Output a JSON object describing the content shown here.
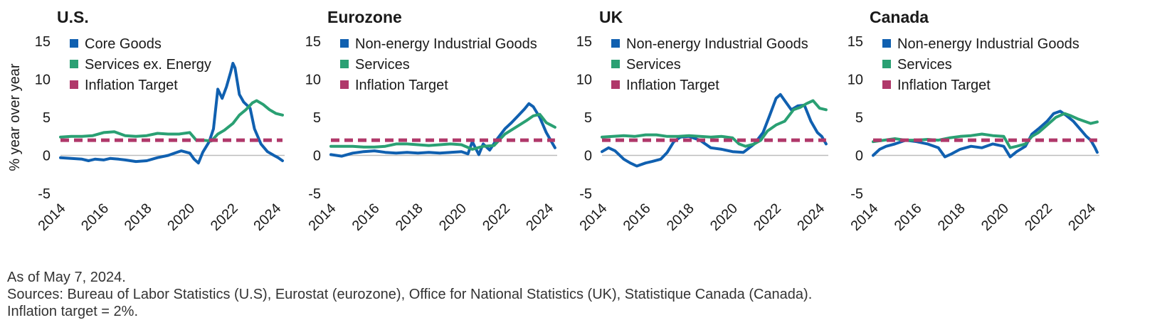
{
  "colors": {
    "goods": "#1060b0",
    "services": "#2aa073",
    "target": "#b0386a",
    "axis": "#bdbdbd",
    "text": "#1a1a1a"
  },
  "notes": {
    "as_of": "As of May 7, 2024.",
    "sources": "Sources: Bureau of Labor Statistics (U.S), Eurostat (eurozone), Office for National Statistics (UK), Statistique Canada (Canada).",
    "target_note": "Inflation target = 2%."
  },
  "chart_data": [
    {
      "type": "line",
      "title": "U.S.",
      "ylabel": "% year over year",
      "xlabel": "",
      "ylim": [
        -5,
        15
      ],
      "yticks": [
        -5,
        0,
        5,
        10,
        15
      ],
      "xlim": [
        2014,
        2024.4
      ],
      "xticks": [
        2014,
        2016,
        2018,
        2020,
        2022,
        2024
      ],
      "legend": "top-left",
      "grid": false,
      "series": [
        {
          "name": "Core Goods",
          "color_key": "goods",
          "x": [
            2014,
            2014.5,
            2015,
            2015.3,
            2015.6,
            2016,
            2016.3,
            2016.7,
            2017,
            2017.5,
            2018,
            2018.5,
            2019,
            2019.3,
            2019.6,
            2020,
            2020.2,
            2020.4,
            2020.6,
            2020.9,
            2021.1,
            2021.3,
            2021.5,
            2021.7,
            2021.9,
            2022.0,
            2022.1,
            2022.3,
            2022.5,
            2022.8,
            2023.0,
            2023.3,
            2023.6,
            2023.9,
            2024.1,
            2024.3
          ],
          "values": [
            -0.3,
            -0.4,
            -0.5,
            -0.7,
            -0.5,
            -0.6,
            -0.4,
            -0.5,
            -0.6,
            -0.8,
            -0.7,
            -0.3,
            0.0,
            0.3,
            0.6,
            0.3,
            -0.5,
            -1.0,
            0.4,
            1.8,
            3.5,
            8.7,
            7.5,
            9.0,
            11.0,
            12.1,
            11.5,
            8.0,
            7.0,
            6.2,
            3.5,
            1.5,
            0.5,
            0.0,
            -0.3,
            -0.7
          ]
        },
        {
          "name": "Services ex. Energy",
          "color_key": "services",
          "x": [
            2014,
            2014.5,
            2015,
            2015.5,
            2016,
            2016.5,
            2017,
            2017.5,
            2018,
            2018.5,
            2019,
            2019.5,
            2020,
            2020.3,
            2020.6,
            2021,
            2021.3,
            2021.6,
            2022,
            2022.3,
            2022.6,
            2022.9,
            2023.1,
            2023.4,
            2023.7,
            2024,
            2024.3
          ],
          "values": [
            2.4,
            2.5,
            2.5,
            2.6,
            3.0,
            3.1,
            2.6,
            2.5,
            2.6,
            2.9,
            2.8,
            2.8,
            3.0,
            2.0,
            2.0,
            1.9,
            2.8,
            3.3,
            4.2,
            5.3,
            6.0,
            6.9,
            7.2,
            6.7,
            6.0,
            5.5,
            5.3
          ]
        },
        {
          "name": "Inflation Target",
          "color_key": "target",
          "dashed": true,
          "x": [
            2014,
            2024.3
          ],
          "values": [
            2,
            2
          ]
        }
      ]
    },
    {
      "type": "line",
      "title": "Eurozone",
      "ylabel": "",
      "xlabel": "",
      "ylim": [
        -5,
        15
      ],
      "yticks": [
        -5,
        0,
        5,
        10,
        15
      ],
      "xlim": [
        2014,
        2024.4
      ],
      "xticks": [
        2014,
        2016,
        2018,
        2020,
        2022,
        2024
      ],
      "legend": "top-left",
      "grid": false,
      "series": [
        {
          "name": "Non-energy Industrial Goods",
          "color_key": "goods",
          "x": [
            2014,
            2014.5,
            2015,
            2015.5,
            2016,
            2016.5,
            2017,
            2017.5,
            2018,
            2018.5,
            2019,
            2019.5,
            2020,
            2020.3,
            2020.5,
            2020.8,
            2021,
            2021.3,
            2021.6,
            2022,
            2022.3,
            2022.6,
            2022.9,
            2023.1,
            2023.3,
            2023.6,
            2023.9,
            2024.1,
            2024.3
          ],
          "values": [
            0.1,
            -0.1,
            0.3,
            0.5,
            0.6,
            0.4,
            0.3,
            0.4,
            0.3,
            0.4,
            0.3,
            0.4,
            0.5,
            0.2,
            1.8,
            0.1,
            1.5,
            0.7,
            2.0,
            3.5,
            4.3,
            5.2,
            6.1,
            6.8,
            6.4,
            5.0,
            3.0,
            2.0,
            1.0
          ]
        },
        {
          "name": "Services",
          "color_key": "services",
          "x": [
            2014,
            2014.5,
            2015,
            2015.5,
            2016,
            2016.5,
            2017,
            2017.5,
            2018,
            2018.5,
            2019,
            2019.5,
            2020,
            2020.5,
            2021,
            2021.5,
            2022,
            2022.5,
            2023,
            2023.3,
            2023.6,
            2023.9,
            2024.1,
            2024.3
          ],
          "values": [
            1.2,
            1.2,
            1.2,
            1.1,
            1.1,
            1.2,
            1.5,
            1.5,
            1.4,
            1.3,
            1.4,
            1.5,
            1.4,
            0.8,
            1.2,
            1.3,
            2.8,
            3.7,
            4.6,
            5.2,
            5.4,
            4.3,
            4.0,
            3.7
          ]
        },
        {
          "name": "Inflation Target",
          "color_key": "target",
          "dashed": true,
          "x": [
            2014,
            2024.3
          ],
          "values": [
            2,
            2
          ]
        }
      ]
    },
    {
      "type": "line",
      "title": "UK",
      "ylabel": "",
      "xlabel": "",
      "ylim": [
        -5,
        15
      ],
      "yticks": [
        -5,
        0,
        5,
        10,
        15
      ],
      "xlim": [
        2014,
        2024.4
      ],
      "xticks": [
        2014,
        2016,
        2018,
        2020,
        2022,
        2024
      ],
      "legend": "top-left",
      "grid": false,
      "series": [
        {
          "name": "Non-energy Industrial Goods",
          "color_key": "goods",
          "x": [
            2014,
            2014.3,
            2014.6,
            2015,
            2015.3,
            2015.6,
            2016,
            2016.3,
            2016.7,
            2017,
            2017.3,
            2017.6,
            2018,
            2018.5,
            2019,
            2019.5,
            2020,
            2020.5,
            2021,
            2021.4,
            2021.7,
            2022,
            2022.2,
            2022.4,
            2022.7,
            2023,
            2023.3,
            2023.6,
            2023.9,
            2024.1,
            2024.3
          ],
          "values": [
            0.5,
            1.0,
            0.6,
            -0.5,
            -1.0,
            -1.4,
            -1.0,
            -0.8,
            -0.5,
            0.4,
            1.8,
            2.4,
            2.5,
            2.0,
            1.0,
            0.8,
            0.5,
            0.4,
            1.5,
            3.0,
            5.2,
            7.5,
            8.0,
            7.2,
            6.0,
            6.5,
            6.6,
            4.5,
            3.0,
            2.5,
            1.5
          ]
        },
        {
          "name": "Services",
          "color_key": "services",
          "x": [
            2014,
            2014.5,
            2015,
            2015.5,
            2016,
            2016.5,
            2017,
            2017.5,
            2018,
            2018.5,
            2019,
            2019.5,
            2020,
            2020.3,
            2020.6,
            2021,
            2021.3,
            2021.6,
            2022,
            2022.4,
            2022.8,
            2023.1,
            2023.4,
            2023.7,
            2024,
            2024.3
          ],
          "values": [
            2.4,
            2.5,
            2.6,
            2.5,
            2.7,
            2.7,
            2.5,
            2.5,
            2.6,
            2.5,
            2.4,
            2.5,
            2.3,
            1.5,
            1.2,
            1.5,
            2.0,
            3.2,
            4.0,
            4.5,
            6.0,
            6.3,
            6.8,
            7.2,
            6.2,
            6.0
          ]
        },
        {
          "name": "Inflation Target",
          "color_key": "target",
          "dashed": true,
          "x": [
            2014,
            2024.3
          ],
          "values": [
            2,
            2
          ]
        }
      ]
    },
    {
      "type": "line",
      "title": "Canada",
      "ylabel": "",
      "xlabel": "",
      "ylim": [
        -5,
        15
      ],
      "yticks": [
        -5,
        0,
        5,
        10,
        15
      ],
      "xlim": [
        2014,
        2024.4
      ],
      "xticks": [
        2014,
        2016,
        2018,
        2020,
        2022,
        2024
      ],
      "legend": "top-left",
      "grid": false,
      "series": [
        {
          "name": "Non-energy Industrial Goods",
          "color_key": "goods",
          "x": [
            2014,
            2014.3,
            2014.6,
            2015,
            2015.5,
            2016,
            2016.5,
            2017,
            2017.3,
            2017.6,
            2018,
            2018.5,
            2019,
            2019.5,
            2020,
            2020.3,
            2020.6,
            2021,
            2021.3,
            2021.6,
            2022,
            2022.3,
            2022.6,
            2022.9,
            2023.2,
            2023.5,
            2023.8,
            2024,
            2024.2,
            2024.3
          ],
          "values": [
            0.0,
            0.8,
            1.2,
            1.5,
            2.0,
            1.8,
            1.5,
            1.0,
            -0.2,
            0.2,
            0.8,
            1.2,
            1.0,
            1.5,
            1.2,
            -0.2,
            0.5,
            1.2,
            2.8,
            3.5,
            4.5,
            5.5,
            5.8,
            5.2,
            4.5,
            3.5,
            2.5,
            2.0,
            1.0,
            0.4
          ]
        },
        {
          "name": "Services",
          "color_key": "services",
          "x": [
            2014,
            2014.5,
            2015,
            2015.5,
            2016,
            2016.5,
            2017,
            2017.5,
            2018,
            2018.5,
            2019,
            2019.5,
            2020,
            2020.3,
            2020.6,
            2021,
            2021.3,
            2021.6,
            2022,
            2022.4,
            2022.8,
            2023.1,
            2023.4,
            2023.7,
            2024,
            2024.3
          ],
          "values": [
            1.8,
            2.0,
            2.2,
            2.0,
            2.0,
            2.1,
            2.0,
            2.3,
            2.5,
            2.6,
            2.8,
            2.6,
            2.5,
            1.0,
            1.2,
            1.5,
            2.5,
            3.0,
            4.0,
            5.0,
            5.5,
            5.2,
            4.8,
            4.5,
            4.2,
            4.4
          ]
        },
        {
          "name": "Inflation Target",
          "color_key": "target",
          "dashed": true,
          "x": [
            2014,
            2024.3
          ],
          "values": [
            2,
            2
          ]
        }
      ]
    }
  ]
}
